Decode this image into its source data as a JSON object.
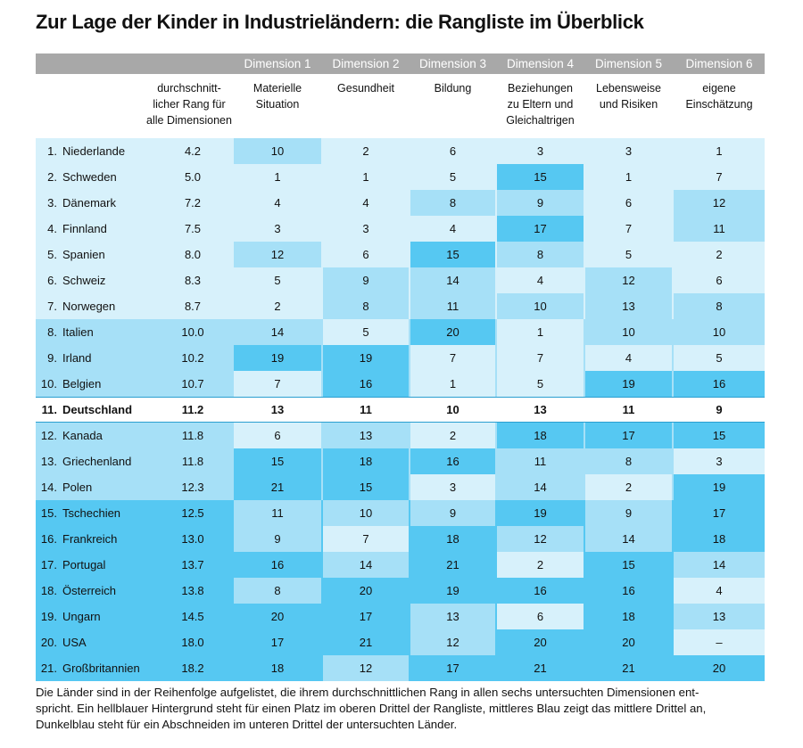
{
  "title": "Zur Lage der Kinder in Industrieländern: die Rangliste im Überblick",
  "colors": {
    "light": "#d7f1fb",
    "medium": "#a6e0f7",
    "dark": "#56c8f2",
    "header_bar": "#a8a8a8",
    "divider": "#2a9fd0"
  },
  "chart_data": {
    "type": "table",
    "dimensions": [
      "Dimension 1",
      "Dimension 2",
      "Dimension 3",
      "Dimension 4",
      "Dimension 5",
      "Dimension 6"
    ],
    "column_headers": [
      "durchschnitt-\nlicher Rang für\nalle Dimensionen",
      "Materielle\nSituation",
      "Gesundheit",
      "Bildung",
      "Beziehungen\nzu Eltern und\nGleichaltrigen",
      "Lebensweise\nund Risiken",
      "eigene\nEinschätzung"
    ],
    "rows": [
      {
        "rank": "1.",
        "country": "Niederlande",
        "avg": "4.2",
        "avg_tier": "light",
        "values": [
          "10",
          "2",
          "6",
          "3",
          "3",
          "1"
        ],
        "tiers": [
          "medium",
          "light",
          "light",
          "light",
          "light",
          "light"
        ]
      },
      {
        "rank": "2.",
        "country": "Schweden",
        "avg": "5.0",
        "avg_tier": "light",
        "values": [
          "1",
          "1",
          "5",
          "15",
          "1",
          "7"
        ],
        "tiers": [
          "light",
          "light",
          "light",
          "dark",
          "light",
          "light"
        ]
      },
      {
        "rank": "3.",
        "country": "Dänemark",
        "avg": "7.2",
        "avg_tier": "light",
        "values": [
          "4",
          "4",
          "8",
          "9",
          "6",
          "12"
        ],
        "tiers": [
          "light",
          "light",
          "medium",
          "medium",
          "light",
          "medium"
        ]
      },
      {
        "rank": "4.",
        "country": "Finnland",
        "avg": "7.5",
        "avg_tier": "light",
        "values": [
          "3",
          "3",
          "4",
          "17",
          "7",
          "11"
        ],
        "tiers": [
          "light",
          "light",
          "light",
          "dark",
          "light",
          "medium"
        ]
      },
      {
        "rank": "5.",
        "country": "Spanien",
        "avg": "8.0",
        "avg_tier": "light",
        "values": [
          "12",
          "6",
          "15",
          "8",
          "5",
          "2"
        ],
        "tiers": [
          "medium",
          "light",
          "dark",
          "medium",
          "light",
          "light"
        ]
      },
      {
        "rank": "6.",
        "country": "Schweiz",
        "avg": "8.3",
        "avg_tier": "light",
        "values": [
          "5",
          "9",
          "14",
          "4",
          "12",
          "6"
        ],
        "tiers": [
          "light",
          "medium",
          "medium",
          "light",
          "medium",
          "light"
        ]
      },
      {
        "rank": "7.",
        "country": "Norwegen",
        "avg": "8.7",
        "avg_tier": "light",
        "values": [
          "2",
          "8",
          "11",
          "10",
          "13",
          "8"
        ],
        "tiers": [
          "light",
          "medium",
          "medium",
          "medium",
          "medium",
          "medium"
        ]
      },
      {
        "rank": "8.",
        "country": "Italien",
        "avg": "10.0",
        "avg_tier": "medium",
        "values": [
          "14",
          "5",
          "20",
          "1",
          "10",
          "10"
        ],
        "tiers": [
          "medium",
          "light",
          "dark",
          "light",
          "medium",
          "medium"
        ]
      },
      {
        "rank": "9.",
        "country": "Irland",
        "avg": "10.2",
        "avg_tier": "medium",
        "values": [
          "19",
          "19",
          "7",
          "7",
          "4",
          "5"
        ],
        "tiers": [
          "dark",
          "dark",
          "light",
          "light",
          "light",
          "light"
        ]
      },
      {
        "rank": "10.",
        "country": "Belgien",
        "avg": "10.7",
        "avg_tier": "medium",
        "values": [
          "7",
          "16",
          "1",
          "5",
          "19",
          "16"
        ],
        "tiers": [
          "light",
          "dark",
          "light",
          "light",
          "dark",
          "dark"
        ]
      },
      {
        "rank": "11.",
        "country": "Deutschland",
        "avg": "11.2",
        "avg_tier": "medium",
        "values": [
          "13",
          "11",
          "10",
          "13",
          "11",
          "9"
        ],
        "tiers": [
          "medium",
          "medium",
          "medium",
          "medium",
          "medium",
          "medium"
        ],
        "bold": true
      },
      {
        "rank": "12.",
        "country": "Kanada",
        "avg": "11.8",
        "avg_tier": "medium",
        "values": [
          "6",
          "13",
          "2",
          "18",
          "17",
          "15"
        ],
        "tiers": [
          "light",
          "medium",
          "light",
          "dark",
          "dark",
          "dark"
        ]
      },
      {
        "rank": "13.",
        "country": "Griechenland",
        "avg": "11.8",
        "avg_tier": "medium",
        "values": [
          "15",
          "18",
          "16",
          "11",
          "8",
          "3"
        ],
        "tiers": [
          "dark",
          "dark",
          "dark",
          "medium",
          "medium",
          "light"
        ]
      },
      {
        "rank": "14.",
        "country": "Polen",
        "avg": "12.3",
        "avg_tier": "medium",
        "values": [
          "21",
          "15",
          "3",
          "14",
          "2",
          "19"
        ],
        "tiers": [
          "dark",
          "dark",
          "light",
          "medium",
          "light",
          "dark"
        ]
      },
      {
        "rank": "15.",
        "country": "Tschechien",
        "avg": "12.5",
        "avg_tier": "dark",
        "values": [
          "11",
          "10",
          "9",
          "19",
          "9",
          "17"
        ],
        "tiers": [
          "medium",
          "medium",
          "medium",
          "dark",
          "medium",
          "dark"
        ]
      },
      {
        "rank": "16.",
        "country": "Frankreich",
        "avg": "13.0",
        "avg_tier": "dark",
        "values": [
          "9",
          "7",
          "18",
          "12",
          "14",
          "18"
        ],
        "tiers": [
          "medium",
          "light",
          "dark",
          "medium",
          "medium",
          "dark"
        ]
      },
      {
        "rank": "17.",
        "country": "Portugal",
        "avg": "13.7",
        "avg_tier": "dark",
        "values": [
          "16",
          "14",
          "21",
          "2",
          "15",
          "14"
        ],
        "tiers": [
          "dark",
          "medium",
          "dark",
          "light",
          "dark",
          "medium"
        ]
      },
      {
        "rank": "18.",
        "country": "Österreich",
        "avg": "13.8",
        "avg_tier": "dark",
        "values": [
          "8",
          "20",
          "19",
          "16",
          "16",
          "4"
        ],
        "tiers": [
          "medium",
          "dark",
          "dark",
          "dark",
          "dark",
          "light"
        ]
      },
      {
        "rank": "19.",
        "country": "Ungarn",
        "avg": "14.5",
        "avg_tier": "dark",
        "values": [
          "20",
          "17",
          "13",
          "6",
          "18",
          "13"
        ],
        "tiers": [
          "dark",
          "dark",
          "medium",
          "light",
          "dark",
          "medium"
        ]
      },
      {
        "rank": "20.",
        "country": "USA",
        "avg": "18.0",
        "avg_tier": "dark",
        "values": [
          "17",
          "21",
          "12",
          "20",
          "20",
          "–"
        ],
        "tiers": [
          "dark",
          "dark",
          "medium",
          "dark",
          "dark",
          "light"
        ]
      },
      {
        "rank": "21.",
        "country": "Großbritannien",
        "avg": "18.2",
        "avg_tier": "dark",
        "values": [
          "18",
          "12",
          "17",
          "21",
          "21",
          "20"
        ],
        "tiers": [
          "dark",
          "medium",
          "dark",
          "dark",
          "dark",
          "dark"
        ]
      }
    ]
  },
  "footnote": [
    "Die Länder sind in der Reihenfolge aufgelistet, die ihrem durchschnittlichen Rang in allen sechs untersuchten Dimensionen ent-",
    "spricht. Ein hellblauer Hintergrund steht für einen Platz im oberen Drittel der Rangliste, mittleres Blau zeigt das mittlere Drittel an,",
    "Dunkelblau steht für ein Abschneiden im unteren Drittel der untersuchten Länder."
  ]
}
